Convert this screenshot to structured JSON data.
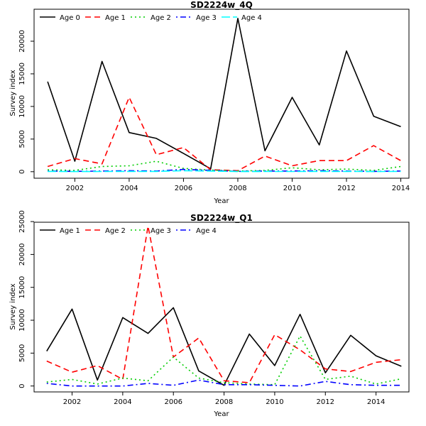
{
  "chart_data": [
    {
      "type": "line",
      "title": "SD2224w_4Q",
      "xlabel": "Year",
      "ylabel": "Survey index",
      "xlim": [
        2000.5,
        2014.3
      ],
      "ylim": [
        -1000,
        24900
      ],
      "x_ticks": [
        2002,
        2004,
        2006,
        2008,
        2010,
        2012,
        2014
      ],
      "y_ticks": [
        0,
        5000,
        10000,
        15000,
        20000
      ],
      "legend_position": "top",
      "x": [
        2001,
        2002,
        2003,
        2004,
        2005,
        2006,
        2007,
        2008,
        2009,
        2010,
        2011,
        2012,
        2013,
        2014
      ],
      "series": [
        {
          "name": "Age 0",
          "color": "#000000",
          "dash": "solid",
          "values": [
            13800,
            1600,
            16900,
            6000,
            5100,
            2800,
            450,
            23500,
            3200,
            11400,
            4100,
            18500,
            8500,
            6900
          ]
        },
        {
          "name": "Age 1",
          "color": "#ff0000",
          "dash": "dashed",
          "values": [
            800,
            2000,
            1200,
            11400,
            2600,
            3700,
            300,
            150,
            2400,
            900,
            1700,
            1700,
            4000,
            1700
          ]
        },
        {
          "name": "Age 2",
          "color": "#00cd00",
          "dash": "dotted",
          "values": [
            300,
            200,
            800,
            900,
            1600,
            500,
            250,
            100,
            200,
            600,
            300,
            400,
            200,
            800
          ]
        },
        {
          "name": "Age 3",
          "color": "#0000ff",
          "dash": "dotdash",
          "values": [
            100,
            50,
            100,
            150,
            100,
            350,
            200,
            50,
            100,
            100,
            150,
            100,
            50,
            100
          ]
        },
        {
          "name": "Age 4",
          "color": "#00ffff",
          "dash": "longdash",
          "values": [
            50,
            20,
            30,
            50,
            50,
            150,
            100,
            20,
            30,
            30,
            50,
            50,
            20,
            50
          ]
        }
      ]
    },
    {
      "type": "line",
      "title": "SD2224w_Q1",
      "xlabel": "Year",
      "ylabel": "Survey index",
      "xlim": [
        2000.5,
        2015.3
      ],
      "ylim": [
        -900,
        24900
      ],
      "x_ticks": [
        2002,
        2004,
        2006,
        2008,
        2010,
        2012,
        2014
      ],
      "y_ticks": [
        0,
        5000,
        10000,
        15000,
        20000,
        25000
      ],
      "legend_position": "top",
      "x": [
        2001,
        2002,
        2003,
        2004,
        2005,
        2006,
        2007,
        2008,
        2009,
        2010,
        2011,
        2012,
        2013,
        2014,
        2015
      ],
      "series": [
        {
          "name": "Age 1",
          "color": "#000000",
          "dash": "solid",
          "values": [
            5300,
            11700,
            900,
            10400,
            8000,
            11900,
            2300,
            100,
            7900,
            3100,
            10900,
            2000,
            7700,
            4600,
            3000
          ]
        },
        {
          "name": "Age 2",
          "color": "#ff0000",
          "dash": "dashed",
          "values": [
            3800,
            2100,
            3100,
            1000,
            24300,
            4400,
            7300,
            800,
            500,
            7800,
            5500,
            2600,
            2200,
            3600,
            4000
          ]
        },
        {
          "name": "Age 3",
          "color": "#00cd00",
          "dash": "dotted",
          "values": [
            600,
            1000,
            300,
            1200,
            800,
            4400,
            1200,
            500,
            300,
            200,
            7600,
            1000,
            1500,
            300,
            1100
          ]
        },
        {
          "name": "Age 4",
          "color": "#0000ff",
          "dash": "dotdash",
          "values": [
            400,
            0,
            0,
            0,
            400,
            100,
            900,
            200,
            200,
            100,
            0,
            700,
            200,
            100,
            100
          ]
        }
      ]
    }
  ]
}
